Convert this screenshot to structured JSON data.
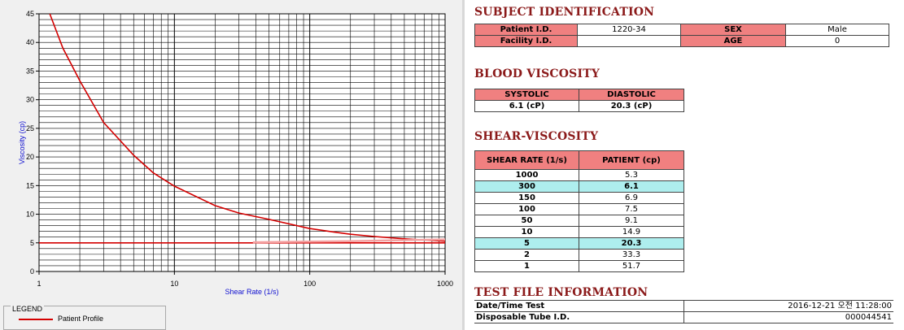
{
  "chart_data": {
    "type": "line",
    "xlabel": "Shear Rate (1/s)",
    "ylabel": "Viscosity (cp)",
    "x_scale": "log",
    "xlim": [
      1,
      1000
    ],
    "ylim": [
      0,
      45
    ],
    "x_ticks": [
      "1",
      "10",
      "100",
      "1000"
    ],
    "y_ticks": [
      "0",
      "5",
      "10",
      "15",
      "20",
      "25",
      "30",
      "35",
      "40",
      "45"
    ],
    "grid": true,
    "series": [
      {
        "name": "Patient Profile",
        "color": "#d40000",
        "x": [
          1.2,
          1.5,
          2,
          3,
          5,
          7,
          10,
          20,
          30,
          50,
          100,
          150,
          200,
          300,
          500,
          700,
          1000
        ],
        "y": [
          45,
          39,
          33.3,
          26,
          20.3,
          17.2,
          14.9,
          11.5,
          10.2,
          9.1,
          7.5,
          6.9,
          6.5,
          6.1,
          5.7,
          5.5,
          5.3
        ]
      },
      {
        "color": "#d40000",
        "x": [
          1,
          1000
        ],
        "y": [
          5,
          5
        ]
      },
      {
        "color": "#f4a0a0",
        "x": [
          38,
          200,
          1000
        ],
        "y": [
          5.1,
          5.3,
          5.6
        ]
      }
    ]
  },
  "legend": {
    "title": "LEGEND",
    "entry": "Patient Profile",
    "color": "#d40000"
  },
  "subject": {
    "title": "SUBJECT IDENTIFICATION",
    "patient_id_label": "Patient I.D.",
    "patient_id": "1220-34",
    "sex_label": "SEX",
    "sex": "Male",
    "facility_id_label": "Facility I.D.",
    "facility_id": "",
    "age_label": "AGE",
    "age": "0"
  },
  "blood": {
    "title": "BLOOD VISCOSITY",
    "systolic_label": "SYSTOLIC",
    "diastolic_label": "DIASTOLIC",
    "systolic": "6.1 (cP)",
    "diastolic": "20.3 (cP)"
  },
  "shear": {
    "title": "SHEAR-VISCOSITY",
    "col1": "SHEAR RATE (1/s)",
    "col2": "PATIENT (cp)",
    "rows": [
      {
        "rate": "1000",
        "value": "5.3"
      },
      {
        "rate": "300",
        "value": "6.1"
      },
      {
        "rate": "150",
        "value": "6.9"
      },
      {
        "rate": "100",
        "value": "7.5"
      },
      {
        "rate": "50",
        "value": "9.1"
      },
      {
        "rate": "10",
        "value": "14.9"
      },
      {
        "rate": "5",
        "value": "20.3"
      },
      {
        "rate": "2",
        "value": "33.3"
      },
      {
        "rate": "1",
        "value": "51.7"
      }
    ]
  },
  "file": {
    "title": "TEST FILE INFORMATION",
    "datetime_label": "Date/Time Test",
    "datetime": "2016-12-21  오전 11:28:00",
    "tube_label": "Disposable Tube I.D.",
    "tube": "000044541"
  }
}
